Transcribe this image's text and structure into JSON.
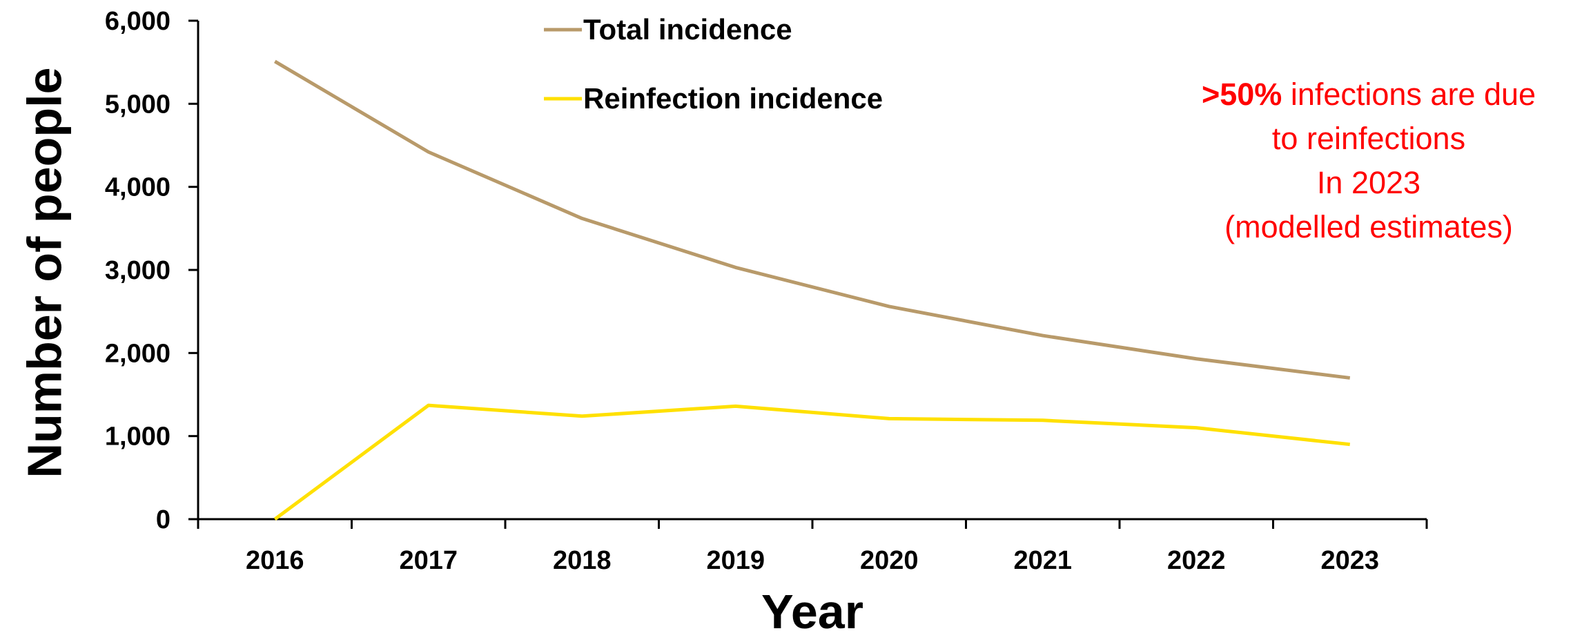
{
  "chart_data": {
    "type": "line",
    "categories": [
      "2016",
      "2017",
      "2018",
      "2019",
      "2020",
      "2021",
      "2022",
      "2023"
    ],
    "series": [
      {
        "name": "Total incidence",
        "color": "#b89a6a",
        "values": [
          5510,
          4420,
          3620,
          3030,
          2560,
          2210,
          1930,
          1700
        ]
      },
      {
        "name": "Reinfection incidence",
        "color": "#ffe000",
        "values": [
          0,
          1370,
          1240,
          1360,
          1210,
          1190,
          1100,
          900
        ]
      }
    ],
    "xlabel": "Year",
    "ylabel": "Number of people",
    "ylim": [
      0,
      6000
    ],
    "yticks": [
      "0",
      "1,000",
      "2,000",
      "3,000",
      "4,000",
      "5,000",
      "6,000"
    ],
    "ytick_values": [
      0,
      1000,
      2000,
      3000,
      4000,
      5000,
      6000
    ],
    "grid": false,
    "legend": "top-center",
    "annotation": {
      "bold_part": ">50%",
      "line1_rest": " infections are due",
      "line2": "to reinfections",
      "line3": "In 2023",
      "line4": "(modelled estimates)"
    }
  }
}
